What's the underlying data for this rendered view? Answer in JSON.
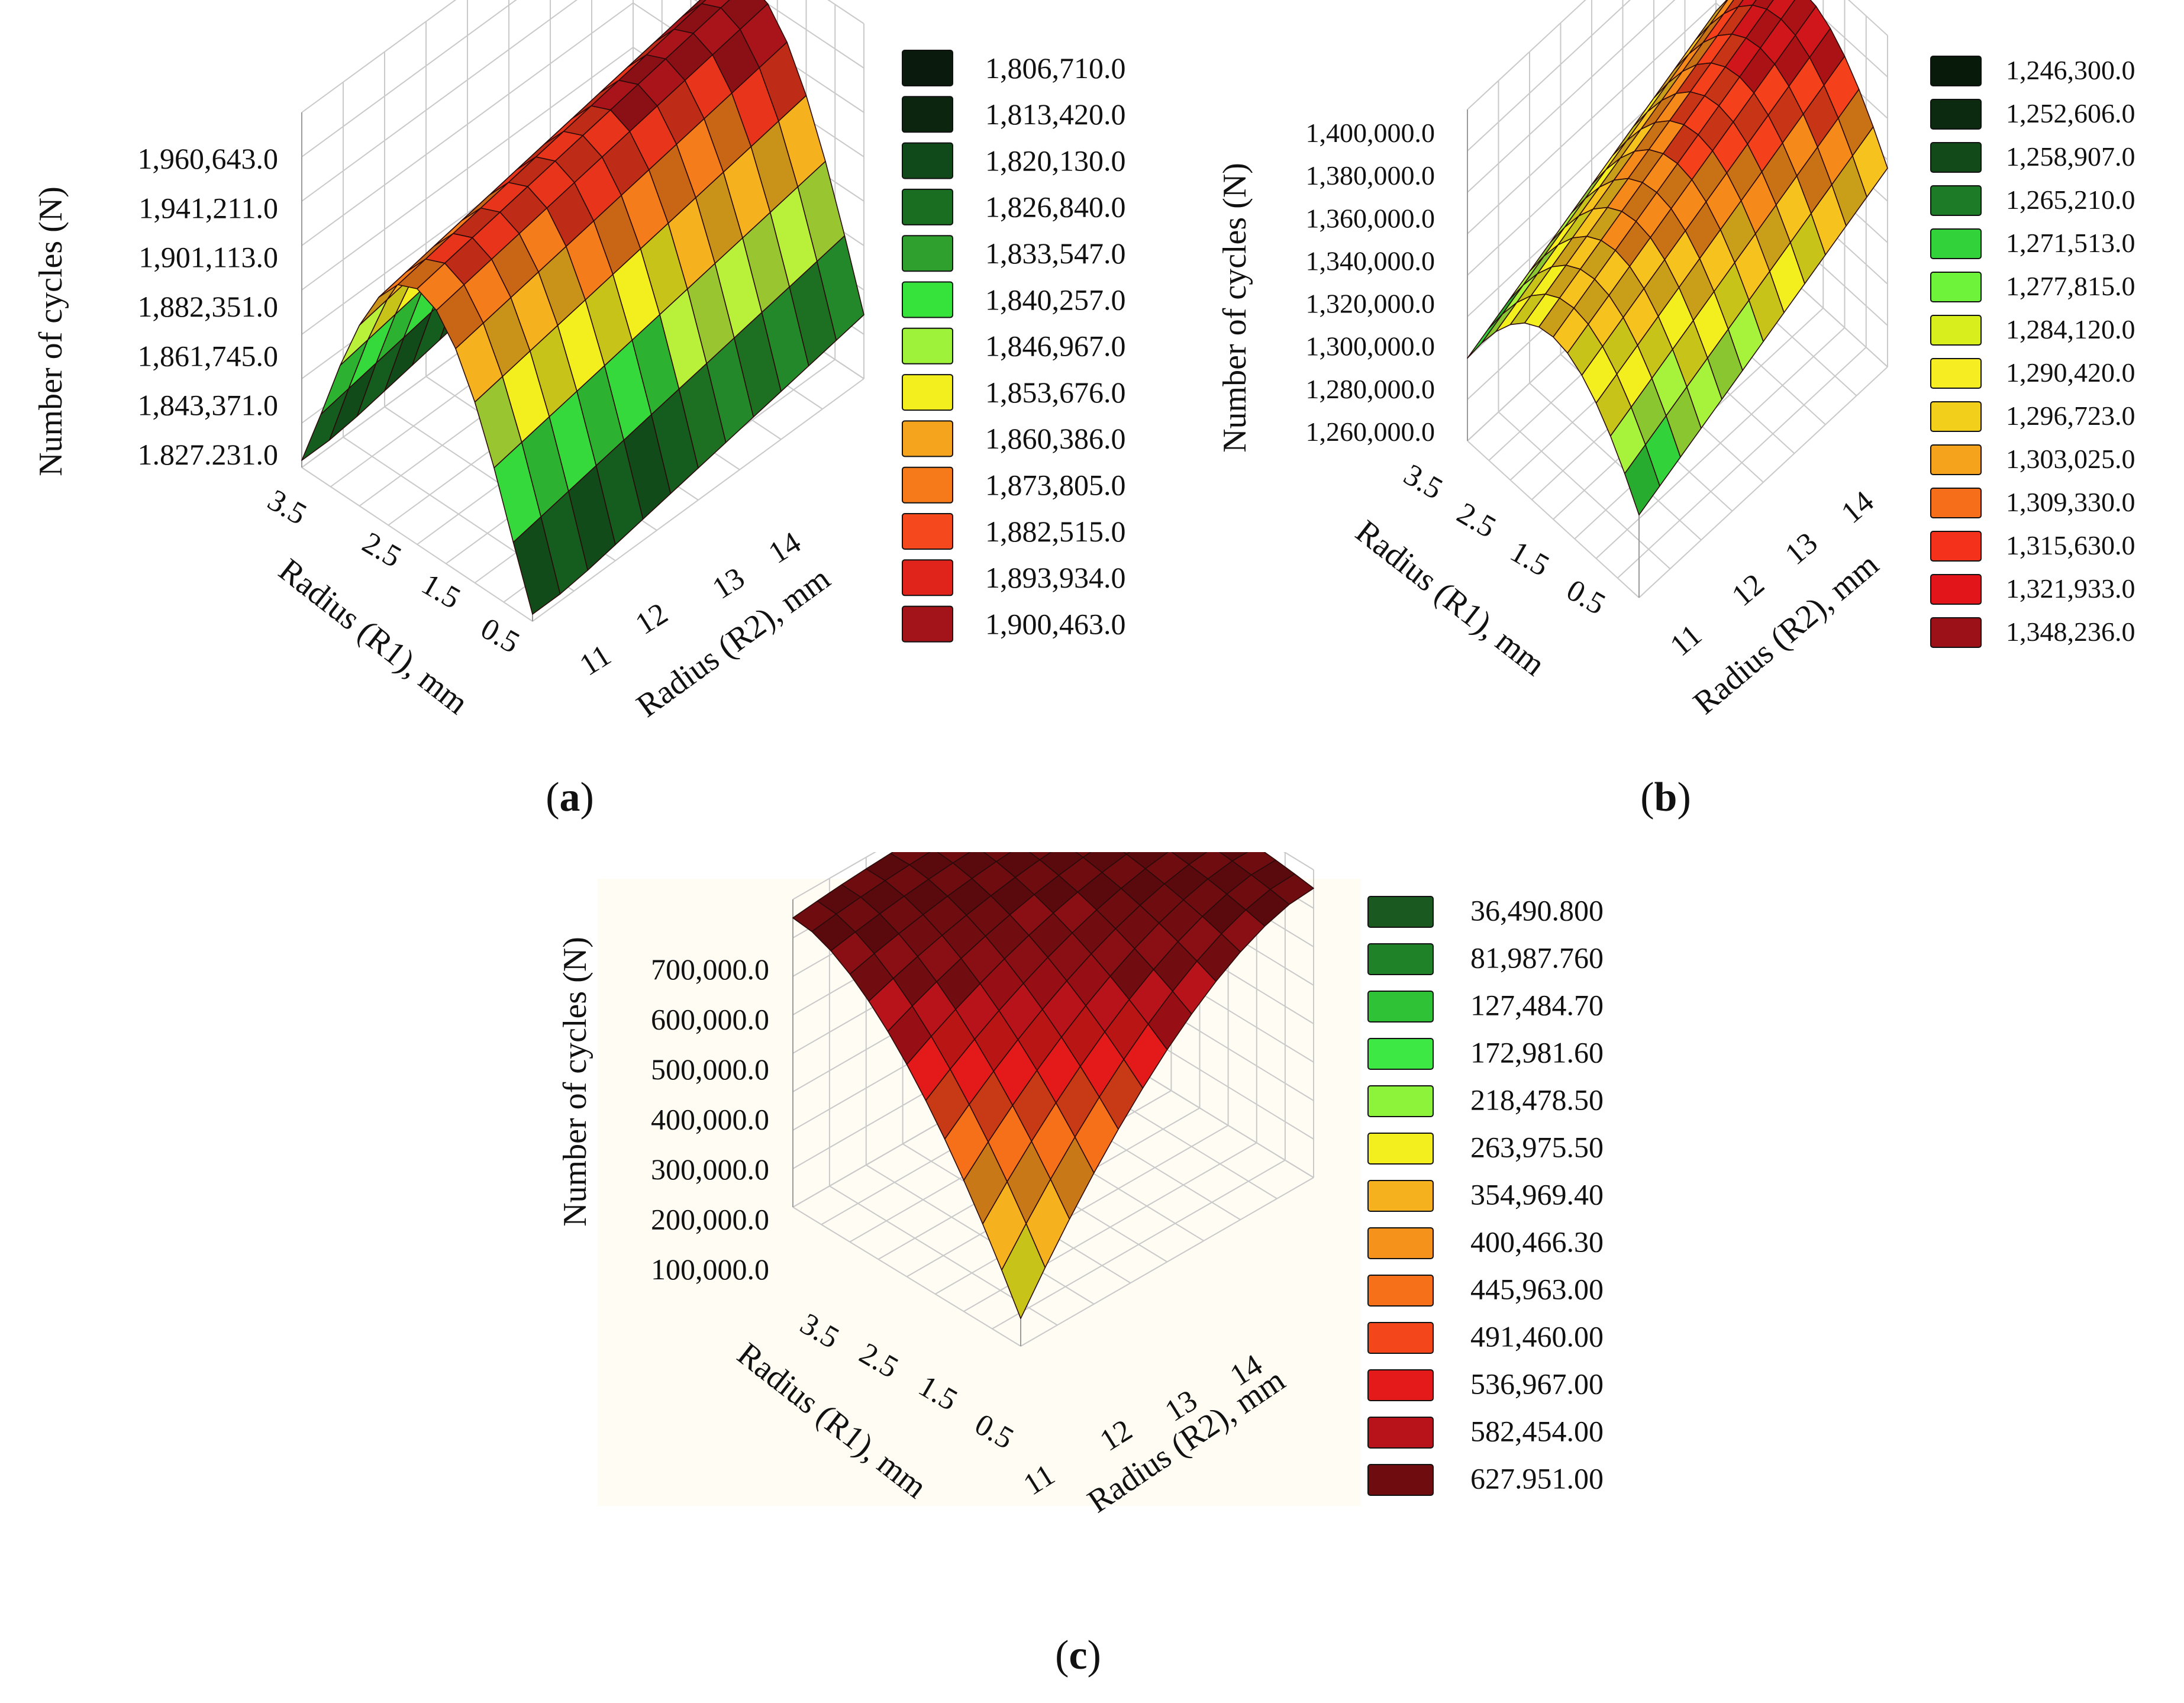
{
  "chart_data": [
    {
      "type": "surface3d",
      "panel_label": "a",
      "zlabel": "Number of cycles (N)",
      "xlabel": "Radius (R1), mm",
      "ylabel": "Radius (R2), mm",
      "z_ticks": [
        "1,960,643.0",
        "1,941,211.0",
        "1,901,113.0",
        "1,882,351.0",
        "1,861,745.0",
        "1,843,371.0",
        "1.827.231.0"
      ],
      "x_ticks": [
        "3.5",
        "2.5",
        "1.5",
        "0.5"
      ],
      "y_ticks": [
        "11",
        "12",
        "13",
        "14"
      ],
      "surface_shape": "ridge",
      "legend": [
        {
          "label": "1,806,710.0",
          "color": "#0a1a0c"
        },
        {
          "label": "1,813,420.0",
          "color": "#0c250f"
        },
        {
          "label": "1,820,130.0",
          "color": "#114a1a"
        },
        {
          "label": "1,826,840.0",
          "color": "#1a6e22"
        },
        {
          "label": "1,833,547.0",
          "color": "#2fa02e"
        },
        {
          "label": "1,840,257.0",
          "color": "#36e33a"
        },
        {
          "label": "1,846,967.0",
          "color": "#9ef23a"
        },
        {
          "label": "1,853,676.0",
          "color": "#f3ee1d"
        },
        {
          "label": "1,860,386.0",
          "color": "#f5a41e"
        },
        {
          "label": "1,873,805.0",
          "color": "#f77a1a"
        },
        {
          "label": "1,882,515.0",
          "color": "#f5481c"
        },
        {
          "label": "1,893,934.0",
          "color": "#e0241c"
        },
        {
          "label": "1,900,463.0",
          "color": "#a3141a"
        }
      ]
    },
    {
      "type": "surface3d",
      "panel_label": "b",
      "zlabel": "Number of cycles (N)",
      "xlabel": "Radius (R1), mm",
      "ylabel": "Radius (R2), mm",
      "z_ticks": [
        "1,400,000.0",
        "1,380,000.0",
        "1,360,000.0",
        "1,340,000.0",
        "1,320,000.0",
        "1,300,000.0",
        "1,280,000.0",
        "1,260,000.0"
      ],
      "x_ticks": [
        "3.5",
        "2.5",
        "1.5",
        "0.5"
      ],
      "y_ticks": [
        "11",
        "12",
        "13",
        "14"
      ],
      "surface_shape": "tilted-ridge",
      "legend": [
        {
          "label": "1,246,300.0",
          "color": "#081a0a"
        },
        {
          "label": "1,252,606.0",
          "color": "#0c2a10"
        },
        {
          "label": "1,258,907.0",
          "color": "#124a1a"
        },
        {
          "label": "1,265,210.0",
          "color": "#1d7a26"
        },
        {
          "label": "1,271,513.0",
          "color": "#31d23a"
        },
        {
          "label": "1,277,815.0",
          "color": "#6ff23a"
        },
        {
          "label": "1,284,120.0",
          "color": "#d8ee1d"
        },
        {
          "label": "1,290,420.0",
          "color": "#f6ee22"
        },
        {
          "label": "1,296,723.0",
          "color": "#f2cf1a"
        },
        {
          "label": "1,303,025.0",
          "color": "#f5a21c"
        },
        {
          "label": "1,309,330.0",
          "color": "#f66e1a"
        },
        {
          "label": "1,315,630.0",
          "color": "#f4321c"
        },
        {
          "label": "1,321,933.0",
          "color": "#e2161a"
        },
        {
          "label": "1,348,236.0",
          "color": "#9c1018"
        }
      ]
    },
    {
      "type": "surface3d",
      "panel_label": "c",
      "zlabel": "Number of cycles (N)",
      "xlabel": "Radius (R1), mm",
      "ylabel": "Radius (R2), mm",
      "z_ticks": [
        "700,000.0",
        "600,000.0",
        "500,000.0",
        "400,000.0",
        "300,000.0",
        "200,000.0",
        "100,000.0"
      ],
      "x_ticks": [
        "3.5",
        "2.5",
        "1.5",
        "0.5"
      ],
      "y_ticks": [
        "11",
        "12",
        "13",
        "14"
      ],
      "surface_shape": "dome",
      "legend": [
        {
          "label": "36,490.800",
          "color": "#1a5a20"
        },
        {
          "label": "81,987.760",
          "color": "#1f8228"
        },
        {
          "label": "127,484.70",
          "color": "#2fc136"
        },
        {
          "label": "172,981.60",
          "color": "#3ee844"
        },
        {
          "label": "218,478.50",
          "color": "#8cf23a"
        },
        {
          "label": "263,975.50",
          "color": "#f3ee1d"
        },
        {
          "label": "354,969.40",
          "color": "#f5b21e"
        },
        {
          "label": "400,466.30",
          "color": "#f5921c"
        },
        {
          "label": "445,963.00",
          "color": "#f6701a"
        },
        {
          "label": "491,460.00",
          "color": "#f4461b"
        },
        {
          "label": "536,967.00",
          "color": "#e3191a"
        },
        {
          "label": "582,454.00",
          "color": "#b8121a"
        },
        {
          "label": "627.951.00",
          "color": "#6e0c10"
        }
      ]
    }
  ]
}
